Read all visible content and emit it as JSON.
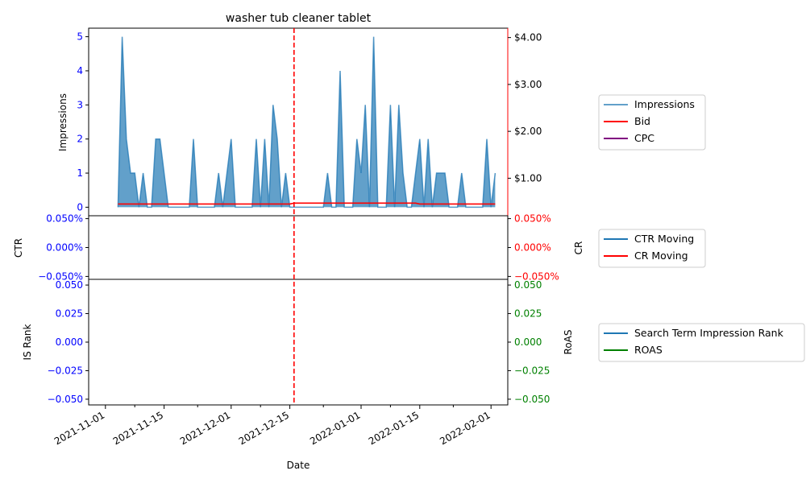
{
  "chart_data": {
    "type": "area",
    "title": "washer tub cleaner tablet",
    "xlabel": "Date",
    "x_ticks": [
      "2021-11-01",
      "2021-11-15",
      "2021-12-01",
      "2021-12-15",
      "2022-01-01",
      "2022-01-15",
      "2022-02-01"
    ],
    "vline_date": "2021-12-16",
    "colors": {
      "impressions": "#1f77b4",
      "bid": "#ff0000",
      "cpc": "#800080",
      "ctr": "#1f77b4",
      "cr": "#ff0000",
      "is_rank": "#1f77b4",
      "roas": "#008000",
      "left_ticks": "#0000ff",
      "vline": "#ff0000"
    },
    "panels": [
      {
        "id": "impressions",
        "ylabel_left": "Impressions",
        "yticks_left": [
          "0",
          "1",
          "2",
          "3",
          "4",
          "5"
        ],
        "ylim_left": [
          -0.25,
          5.25
        ],
        "yticks_right": [
          "$1.00",
          "$2.00",
          "$3.00",
          "$4.00"
        ],
        "yticks_right_values": [
          1,
          2,
          3,
          4
        ],
        "ylim_right": [
          0.2,
          4.2
        ],
        "legend": [
          "Impressions",
          "Bid",
          "CPC"
        ],
        "series": [
          {
            "name": "Impressions",
            "dates": [
              "2021-11-04",
              "2021-11-05",
              "2021-11-06",
              "2021-11-07",
              "2021-11-08",
              "2021-11-09",
              "2021-11-10",
              "2021-11-11",
              "2021-11-12",
              "2021-11-13",
              "2021-11-14",
              "2021-11-15",
              "2021-11-16",
              "2021-11-17",
              "2021-11-18",
              "2021-11-19",
              "2021-11-20",
              "2021-11-21",
              "2021-11-22",
              "2021-11-23",
              "2021-11-24",
              "2021-11-25",
              "2021-11-26",
              "2021-11-27",
              "2021-11-28",
              "2021-11-29",
              "2021-11-30",
              "2021-12-01",
              "2021-12-02",
              "2021-12-03",
              "2021-12-04",
              "2021-12-05",
              "2021-12-06",
              "2021-12-07",
              "2021-12-08",
              "2021-12-09",
              "2021-12-10",
              "2021-12-11",
              "2021-12-12",
              "2021-12-13",
              "2021-12-14",
              "2021-12-15",
              "2021-12-16",
              "2021-12-17",
              "2021-12-18",
              "2021-12-19",
              "2021-12-20",
              "2021-12-21",
              "2021-12-22",
              "2021-12-23",
              "2021-12-24",
              "2021-12-25",
              "2021-12-26",
              "2021-12-27",
              "2021-12-28",
              "2021-12-29",
              "2021-12-30",
              "2021-12-31",
              "2022-01-01",
              "2022-01-02",
              "2022-01-03",
              "2022-01-04",
              "2022-01-05",
              "2022-01-06",
              "2022-01-07",
              "2022-01-08",
              "2022-01-09",
              "2022-01-10",
              "2022-01-11",
              "2022-01-12",
              "2022-01-13",
              "2022-01-14",
              "2022-01-15",
              "2022-01-16",
              "2022-01-17",
              "2022-01-18",
              "2022-01-19",
              "2022-01-20",
              "2022-01-21",
              "2022-01-22",
              "2022-01-23",
              "2022-01-24",
              "2022-01-25",
              "2022-01-26",
              "2022-01-27",
              "2022-01-28",
              "2022-01-29",
              "2022-01-30",
              "2022-01-31",
              "2022-02-01",
              "2022-02-02"
            ],
            "values": [
              0,
              5,
              2,
              1,
              1,
              0,
              1,
              0,
              0,
              2,
              2,
              1,
              0,
              0,
              0,
              0,
              0,
              0,
              2,
              0,
              0,
              0,
              0,
              0,
              1,
              0,
              1,
              2,
              0,
              0,
              0,
              0,
              0,
              2,
              0,
              2,
              0,
              3,
              2,
              0,
              1,
              0,
              0,
              0,
              0,
              0,
              0,
              0,
              0,
              0,
              1,
              0,
              0,
              4,
              0,
              0,
              0,
              2,
              1,
              3,
              0,
              5,
              0,
              0,
              0,
              3,
              0,
              3,
              1,
              0,
              0,
              1,
              2,
              0,
              2,
              0,
              1,
              1,
              1,
              0,
              0,
              0,
              1,
              0,
              0,
              0,
              0,
              0,
              2,
              0,
              1
            ]
          },
          {
            "name": "Bid",
            "dates": [
              "2021-11-04",
              "2021-12-15",
              "2021-12-16",
              "2022-01-14",
              "2022-01-15",
              "2022-02-02"
            ],
            "values": [
              0.45,
              0.45,
              0.47,
              0.47,
              0.45,
              0.45
            ]
          },
          {
            "name": "CPC",
            "dates": [],
            "values": []
          }
        ]
      },
      {
        "id": "ctr_cr",
        "ylabel_left": "CTR",
        "ylabel_right": "CR",
        "yticks_left": [
          "0.050%",
          "0.000%",
          "−0.050%"
        ],
        "yticks_right": [
          "0.050%",
          "0.000%",
          "−0.050%"
        ],
        "ylim": [
          -0.055,
          0.055
        ],
        "legend": [
          "CTR Moving",
          "CR Moving"
        ],
        "series": [
          {
            "name": "CTR Moving",
            "values": []
          },
          {
            "name": "CR Moving",
            "values": []
          }
        ]
      },
      {
        "id": "rank_roas",
        "ylabel_left": "IS Rank",
        "ylabel_right": "RoAS",
        "yticks_left": [
          "0.050",
          "0.025",
          "0.000",
          "−0.025",
          "−0.050"
        ],
        "yticks_right": [
          "0.050",
          "0.025",
          "0.000",
          "−0.025",
          "−0.050"
        ],
        "ylim": [
          -0.055,
          0.055
        ],
        "legend": [
          "Search Term Impression Rank",
          "ROAS"
        ],
        "series": [
          {
            "name": "Search Term Impression Rank",
            "values": []
          },
          {
            "name": "ROAS",
            "values": []
          }
        ]
      }
    ]
  }
}
